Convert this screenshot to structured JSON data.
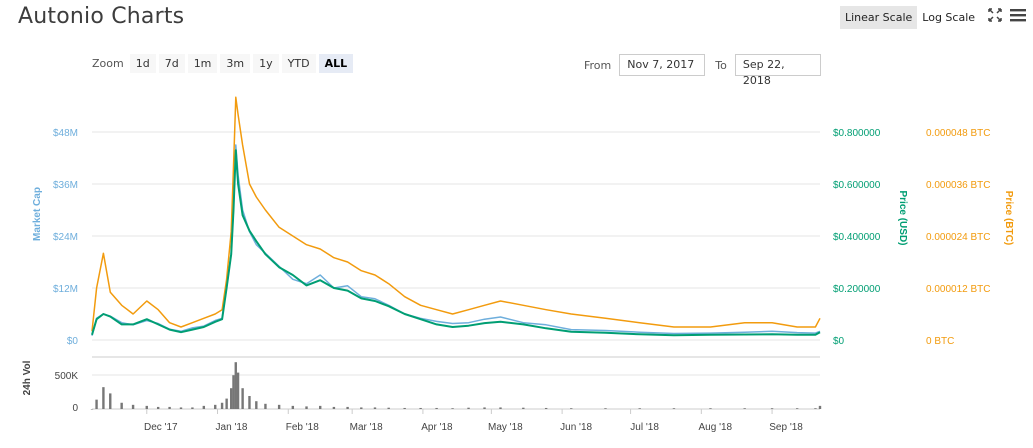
{
  "app": {
    "title": "Autonio Charts"
  },
  "toolbar": {
    "scales": [
      {
        "label": "Linear Scale",
        "active": true
      },
      {
        "label": "Log Scale",
        "active": false
      }
    ],
    "fullscreen_icon": "fullscreen-icon",
    "menu_icon": "menu-icon"
  },
  "zoom": {
    "label": "Zoom",
    "options": [
      {
        "label": "1d",
        "active": false
      },
      {
        "label": "7d",
        "active": false
      },
      {
        "label": "1m",
        "active": false
      },
      {
        "label": "3m",
        "active": false
      },
      {
        "label": "1y",
        "active": false
      },
      {
        "label": "YTD",
        "active": false
      },
      {
        "label": "ALL",
        "active": true
      }
    ]
  },
  "range": {
    "from_label": "From",
    "from_value": "Nov 7, 2017",
    "to_label": "To",
    "to_value": "Sep 22, 2018"
  },
  "colors": {
    "market_cap": "#6eaedc",
    "price_usd": "#009e73",
    "price_btc": "#f29b0e",
    "volume": "#777777",
    "grid": "#e6e6e6"
  },
  "chart_data": {
    "type": "line",
    "x_dates": [
      "2017-11-07",
      "2017-11-09",
      "2017-11-12",
      "2017-11-15",
      "2017-11-20",
      "2017-11-25",
      "2017-12-01",
      "2017-12-06",
      "2017-12-11",
      "2017-12-16",
      "2017-12-21",
      "2017-12-26",
      "2017-12-31",
      "2018-01-03",
      "2018-01-05",
      "2018-01-07",
      "2018-01-08",
      "2018-01-09",
      "2018-01-10",
      "2018-01-12",
      "2018-01-15",
      "2018-01-18",
      "2018-01-22",
      "2018-01-28",
      "2018-02-03",
      "2018-02-09",
      "2018-02-15",
      "2018-02-21",
      "2018-02-27",
      "2018-03-05",
      "2018-03-11",
      "2018-03-17",
      "2018-03-24",
      "2018-03-31",
      "2018-04-07",
      "2018-04-14",
      "2018-04-21",
      "2018-04-28",
      "2018-05-05",
      "2018-05-15",
      "2018-05-25",
      "2018-06-05",
      "2018-06-20",
      "2018-07-05",
      "2018-07-20",
      "2018-08-05",
      "2018-08-20",
      "2018-09-01",
      "2018-09-12",
      "2018-09-20",
      "2018-09-22"
    ],
    "series": [
      {
        "name": "Market Cap",
        "axis": "Market Cap",
        "values": [
          1.0,
          5.0,
          6.0,
          5.5,
          4.0,
          3.5,
          4.5,
          3.8,
          2.5,
          2.0,
          2.8,
          3.2,
          4.5,
          5.0,
          12.0,
          20.0,
          30.0,
          45.0,
          38.0,
          30.0,
          25.0,
          22.0,
          20.0,
          17.0,
          14.0,
          13.0,
          15.0,
          12.0,
          12.5,
          10.0,
          9.5,
          8.0,
          6.0,
          5.0,
          4.3,
          3.8,
          4.0,
          4.8,
          5.3,
          4.0,
          3.5,
          2.4,
          2.2,
          1.8,
          1.5,
          1.6,
          1.8,
          2.0,
          1.7,
          1.6,
          2.0
        ]
      },
      {
        "name": "Price (USD)",
        "axis": "Price (USD)",
        "values": [
          0.02,
          0.08,
          0.1,
          0.09,
          0.06,
          0.06,
          0.08,
          0.06,
          0.04,
          0.03,
          0.04,
          0.05,
          0.07,
          0.08,
          0.2,
          0.33,
          0.5,
          0.73,
          0.6,
          0.48,
          0.42,
          0.38,
          0.33,
          0.28,
          0.25,
          0.21,
          0.23,
          0.2,
          0.19,
          0.16,
          0.15,
          0.13,
          0.1,
          0.08,
          0.06,
          0.05,
          0.055,
          0.065,
          0.07,
          0.06,
          0.045,
          0.032,
          0.028,
          0.022,
          0.018,
          0.02,
          0.021,
          0.022,
          0.02,
          0.02,
          0.03
        ]
      },
      {
        "name": "Price (BTC)",
        "axis": "Price (BTC)",
        "values": [
          2e-06,
          1.2e-05,
          2e-05,
          1.1e-05,
          8e-06,
          6e-06,
          9e-06,
          7e-06,
          4e-06,
          3e-06,
          4e-06,
          5e-06,
          6e-06,
          7e-06,
          1.4e-05,
          2.5e-05,
          4e-05,
          5.6e-05,
          5.2e-05,
          4.5e-05,
          3.6e-05,
          3.3e-05,
          3e-05,
          2.6e-05,
          2.4e-05,
          2.2e-05,
          2.1e-05,
          1.9e-05,
          1.8e-05,
          1.6e-05,
          1.5e-05,
          1.3e-05,
          1e-05,
          8e-06,
          7e-06,
          6e-06,
          7e-06,
          8e-06,
          9e-06,
          8e-06,
          7e-06,
          6e-06,
          5e-06,
          4e-06,
          3e-06,
          3e-06,
          4e-06,
          4e-06,
          3e-06,
          3e-06,
          5e-06
        ]
      }
    ],
    "volume": [
      0,
      180,
      420,
      300,
      120,
      80,
      60,
      40,
      40,
      30,
      30,
      60,
      80,
      120,
      200,
      400,
      650,
      900,
      700,
      400,
      250,
      150,
      100,
      80,
      60,
      50,
      60,
      40,
      40,
      30,
      30,
      25,
      20,
      20,
      20,
      15,
      25,
      30,
      30,
      25,
      20,
      15,
      15,
      15,
      15,
      15,
      15,
      15,
      15,
      15,
      60
    ],
    "axes": {
      "market_cap": {
        "label": "Market Cap",
        "ticks": [
          "$0",
          "$12M",
          "$24M",
          "$36M",
          "$48M"
        ],
        "range": [
          0,
          48
        ]
      },
      "price_usd": {
        "label": "Price (USD)",
        "ticks": [
          "$0",
          "$0.200000",
          "$0.400000",
          "$0.600000",
          "$0.800000"
        ],
        "range": [
          0,
          0.8
        ]
      },
      "price_btc": {
        "label": "Price (BTC)",
        "ticks": [
          "0 BTC",
          "0.000012 BTC",
          "0.000024 BTC",
          "0.000036 BTC",
          "0.000048 BTC"
        ],
        "range": [
          0,
          4.8e-05
        ]
      },
      "volume": {
        "label": "24h Vol",
        "ticks": [
          "0",
          "500K"
        ],
        "range": [
          0,
          1000
        ]
      },
      "x": {
        "ticks": [
          "Dec '17",
          "Jan '18",
          "Feb '18",
          "Mar '18",
          "Apr '18",
          "May '18",
          "Jun '18",
          "Jul '18",
          "Aug '18",
          "Sep '18"
        ],
        "range": [
          "2017-11-07",
          "2018-09-22"
        ]
      }
    },
    "grid": true
  }
}
